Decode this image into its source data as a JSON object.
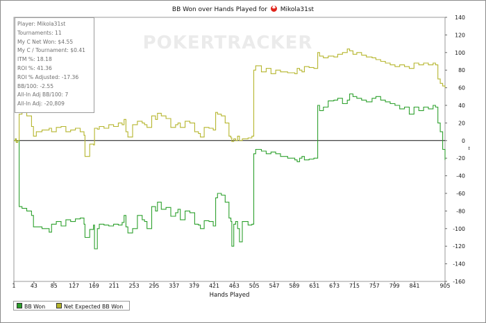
{
  "title": {
    "prefix": "BB Won over Hands Played for",
    "player": "Mikola31st"
  },
  "watermark": "POKERTRACKER",
  "stats_box": [
    "Player: Mikola31st",
    "Tournaments: 11",
    "My C Net Won: $4.55",
    "My C / Tournament: $0.41",
    "ITM %: 18.18",
    "ROI %: 41.36",
    "ROI % Adjusted: -17.36",
    "BB/100: -2.55",
    "All-In Adj BB/100: 7",
    "All-In Adj: -20,809"
  ],
  "legend": {
    "bb_won": "BB Won",
    "net_expected": "Net Expected BB Won"
  },
  "chart_data": {
    "type": "line",
    "xlabel": "Hands Played",
    "ylabel": "",
    "xlim": [
      1,
      905
    ],
    "ylim": [
      -160,
      140
    ],
    "x_ticks": [
      1,
      43,
      85,
      127,
      169,
      211,
      253,
      295,
      337,
      379,
      421,
      463,
      505,
      547,
      589,
      631,
      673,
      715,
      757,
      799,
      841,
      905
    ],
    "y_ticks": [
      140,
      120,
      100,
      80,
      60,
      40,
      20,
      0,
      -20,
      -40,
      -60,
      -80,
      -100,
      -120,
      -140,
      -160
    ],
    "grid": false,
    "zero_line": true,
    "legend_position": "bottom-left",
    "series": [
      {
        "name": "BB Won",
        "color": "#2ca02c",
        "x": [
          1,
          4,
          6,
          9,
          12,
          18,
          28,
          38,
          42,
          48,
          60,
          75,
          80,
          90,
          100,
          110,
          120,
          130,
          140,
          148,
          150,
          160,
          168,
          170,
          176,
          180,
          190,
          200,
          210,
          220,
          228,
          232,
          236,
          240,
          250,
          260,
          270,
          275,
          280,
          290,
          298,
          302,
          310,
          320,
          330,
          340,
          345,
          350,
          360,
          370,
          380,
          388,
          392,
          400,
          410,
          419,
          424,
          428,
          436,
          444,
          452,
          456,
          458,
          462,
          466,
          470,
          474,
          480,
          492,
          500,
          504,
          508,
          520,
          530,
          540,
          550,
          560,
          575,
          590,
          595,
          600,
          605,
          610,
          620,
          630,
          638,
          642,
          650,
          660,
          672,
          680,
          690,
          700,
          705,
          712,
          720,
          730,
          740,
          752,
          760,
          770,
          780,
          790,
          800,
          810,
          820,
          830,
          840,
          850,
          860,
          870,
          880,
          885,
          890,
          895,
          900,
          905
        ],
        "y": [
          0,
          2,
          -2,
          0,
          -75,
          -77,
          -80,
          -85,
          -98,
          -98,
          -100,
          -104,
          -95,
          -92,
          -97,
          -90,
          -92,
          -89,
          -88,
          -95,
          -110,
          -101,
          -96,
          -123,
          -100,
          -95,
          -96,
          -97,
          -95,
          -96,
          -93,
          -85,
          -98,
          -105,
          -100,
          -85,
          -90,
          -92,
          -100,
          -75,
          -80,
          -70,
          -78,
          -76,
          -86,
          -82,
          -78,
          -90,
          -80,
          -82,
          -95,
          -96,
          -100,
          -91,
          -92,
          -97,
          -65,
          -60,
          -62,
          -70,
          -88,
          -92,
          -120,
          -95,
          -92,
          -100,
          -115,
          -92,
          -96,
          -95,
          -15,
          -10,
          -12,
          -15,
          -13,
          -15,
          -18,
          -20,
          -22,
          -24,
          -20,
          -18,
          -22,
          -21,
          -20,
          40,
          34,
          38,
          45,
          46,
          48,
          42,
          46,
          53,
          50,
          48,
          46,
          44,
          48,
          50,
          46,
          44,
          42,
          40,
          36,
          38,
          30,
          38,
          34,
          38,
          36,
          40,
          38,
          20,
          10,
          -10,
          -22
        ]
      },
      {
        "name": "Net Expected BB Won",
        "color": "#b5b52c",
        "x": [
          1,
          4,
          6,
          9,
          12,
          18,
          28,
          38,
          42,
          48,
          60,
          75,
          80,
          90,
          100,
          110,
          120,
          130,
          140,
          148,
          150,
          160,
          168,
          170,
          176,
          180,
          190,
          200,
          210,
          220,
          228,
          232,
          236,
          240,
          250,
          260,
          270,
          275,
          280,
          290,
          298,
          302,
          310,
          320,
          330,
          340,
          345,
          350,
          360,
          370,
          380,
          388,
          392,
          400,
          410,
          419,
          424,
          428,
          436,
          444,
          452,
          456,
          458,
          462,
          466,
          470,
          474,
          480,
          492,
          500,
          504,
          508,
          520,
          530,
          540,
          550,
          560,
          575,
          590,
          595,
          600,
          605,
          610,
          620,
          630,
          638,
          642,
          650,
          660,
          672,
          680,
          690,
          700,
          705,
          712,
          720,
          730,
          740,
          752,
          760,
          770,
          780,
          790,
          800,
          810,
          820,
          830,
          840,
          850,
          860,
          870,
          880,
          885,
          890,
          895,
          900,
          905
        ],
        "y": [
          0,
          2,
          -2,
          0,
          30,
          32,
          28,
          16,
          5,
          10,
          12,
          14,
          10,
          15,
          16,
          10,
          12,
          14,
          10,
          6,
          -18,
          -4,
          -5,
          14,
          13,
          16,
          14,
          18,
          16,
          20,
          18,
          24,
          10,
          4,
          18,
          22,
          20,
          18,
          15,
          28,
          24,
          31,
          28,
          25,
          15,
          18,
          20,
          15,
          22,
          20,
          10,
          8,
          4,
          15,
          14,
          12,
          32,
          30,
          28,
          20,
          5,
          3,
          -1,
          2,
          0,
          5,
          0,
          2,
          3,
          5,
          80,
          85,
          78,
          82,
          76,
          80,
          78,
          77,
          76,
          82,
          80,
          78,
          84,
          83,
          82,
          100,
          96,
          94,
          96,
          95,
          98,
          100,
          104,
          102,
          98,
          100,
          97,
          95,
          94,
          92,
          90,
          88,
          86,
          84,
          86,
          84,
          82,
          88,
          86,
          88,
          86,
          88,
          86,
          70,
          65,
          62,
          60
        ]
      }
    ]
  }
}
